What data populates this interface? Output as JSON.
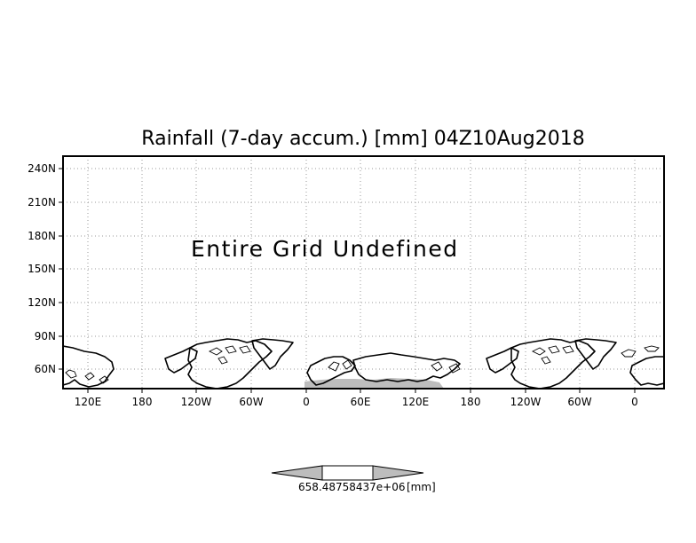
{
  "title": "Rainfall (7-day accum.) [mm] 04Z10Aug2018",
  "message": "Entire Grid Undefined",
  "y_tick_labels": [
    "240N",
    "210N",
    "180N",
    "150N",
    "120N",
    "90N",
    "60N"
  ],
  "x_tick_labels": [
    "120E",
    "180",
    "120W",
    "60W",
    "0",
    "60E",
    "120E",
    "180",
    "120W",
    "60W",
    "0"
  ],
  "colorbar": {
    "value_label": "658.48758437e+06",
    "unit_label": "[mm]"
  },
  "colors": {
    "frame": "#000000",
    "gridline": "#9a9a9a",
    "shaded_region": "#bdbdbd",
    "colorbar_fill": "#bdbdbd"
  }
}
